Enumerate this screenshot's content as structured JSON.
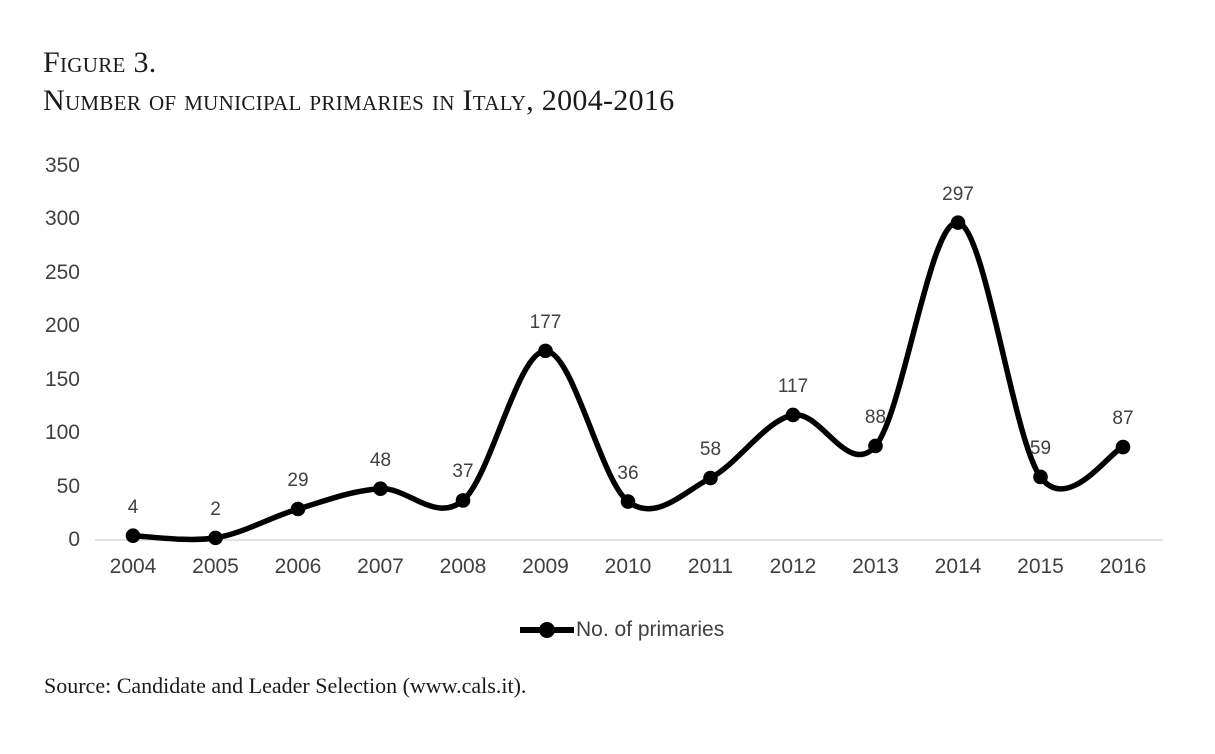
{
  "figure": {
    "label": "Figure 3.",
    "title": "Number of municipal primaries in Italy, 2004-2016"
  },
  "legend": {
    "label": "No. of primaries"
  },
  "source": "Source: Candidate and Leader Selection (www.cals.it).",
  "colors": {
    "series_line": "#000000",
    "marker_fill": "#000000",
    "axis_line": "#d9d9d9",
    "tick_text": "#404040",
    "data_label_text": "#404040",
    "title_text": "#1a1a1a"
  },
  "chart_data": {
    "type": "line",
    "title": "Number of municipal primaries in Italy, 2004-2016",
    "categories": [
      "2004",
      "2005",
      "2006",
      "2007",
      "2008",
      "2009",
      "2010",
      "2011",
      "2012",
      "2013",
      "2014",
      "2015",
      "2016"
    ],
    "series": [
      {
        "name": "No. of primaries",
        "values": [
          4,
          2,
          29,
          48,
          37,
          177,
          36,
          58,
          117,
          88,
          297,
          59,
          87
        ]
      }
    ],
    "xlabel": "",
    "ylabel": "",
    "ylim": [
      0,
      350
    ],
    "yticks": [
      0,
      50,
      100,
      150,
      200,
      250,
      300,
      350
    ],
    "grid": false,
    "smooth": true,
    "markers": "circle",
    "data_labels": true,
    "legend_position": "bottom"
  }
}
